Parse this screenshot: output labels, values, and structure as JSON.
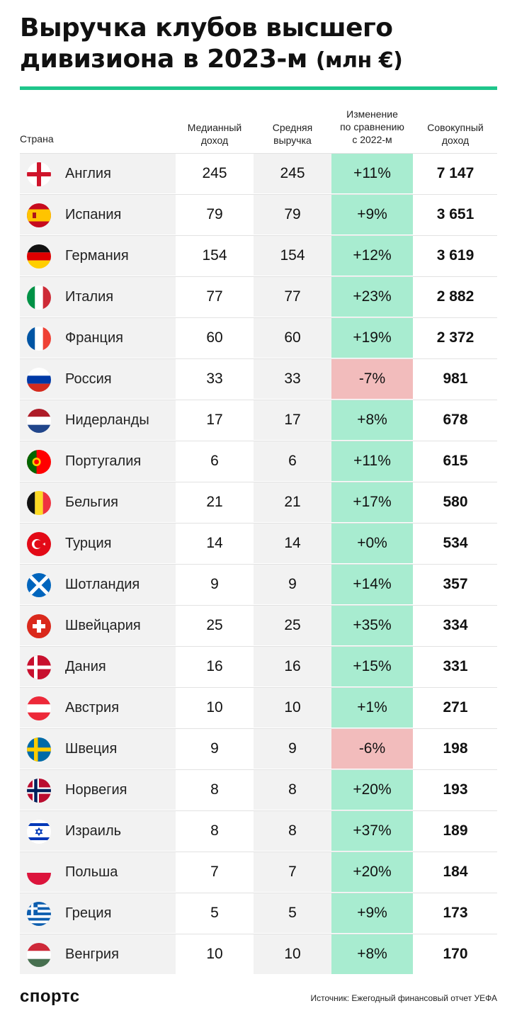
{
  "title_line1": "Выручка клубов высшего",
  "title_line2": "дивизиона в 2023-м",
  "title_unit": "(млн €)",
  "colors": {
    "accent": "#1fc68b",
    "positive": "#a8ecd0",
    "negative": "#f2bcbc"
  },
  "chart_data": {
    "type": "table",
    "columns": [
      "Страна",
      "Медианный доход",
      "Средняя выручка",
      "Изменение по сравнению с 2022-м",
      "Совокупный доход"
    ],
    "rows": [
      {
        "flag": "england-flag-icon",
        "country": "Англия",
        "median": "245",
        "average": "245",
        "change": "+11%",
        "total": "7 147"
      },
      {
        "flag": "spain-flag-icon",
        "country": "Испания",
        "median": "79",
        "average": "79",
        "change": "+9%",
        "total": "3 651"
      },
      {
        "flag": "germany-flag-icon",
        "country": "Германия",
        "median": "154",
        "average": "154",
        "change": "+12%",
        "total": "3 619"
      },
      {
        "flag": "italy-flag-icon",
        "country": "Италия",
        "median": "77",
        "average": "77",
        "change": "+23%",
        "total": "2 882"
      },
      {
        "flag": "france-flag-icon",
        "country": "Франция",
        "median": "60",
        "average": "60",
        "change": "+19%",
        "total": "2 372"
      },
      {
        "flag": "russia-flag-icon",
        "country": "Россия",
        "median": "33",
        "average": "33",
        "change": "-7%",
        "total": "981"
      },
      {
        "flag": "netherlands-flag-icon",
        "country": "Нидерланды",
        "median": "17",
        "average": "17",
        "change": "+8%",
        "total": "678"
      },
      {
        "flag": "portugal-flag-icon",
        "country": "Португалия",
        "median": "6",
        "average": "6",
        "change": "+11%",
        "total": "615"
      },
      {
        "flag": "belgium-flag-icon",
        "country": "Бельгия",
        "median": "21",
        "average": "21",
        "change": "+17%",
        "total": "580"
      },
      {
        "flag": "turkey-flag-icon",
        "country": "Турция",
        "median": "14",
        "average": "14",
        "change": "+0%",
        "total": "534"
      },
      {
        "flag": "scotland-flag-icon",
        "country": "Шотландия",
        "median": "9",
        "average": "9",
        "change": "+14%",
        "total": "357"
      },
      {
        "flag": "switzerland-flag-icon",
        "country": "Швейцария",
        "median": "25",
        "average": "25",
        "change": "+35%",
        "total": "334"
      },
      {
        "flag": "denmark-flag-icon",
        "country": "Дания",
        "median": "16",
        "average": "16",
        "change": "+15%",
        "total": "331"
      },
      {
        "flag": "austria-flag-icon",
        "country": "Австрия",
        "median": "10",
        "average": "10",
        "change": "+1%",
        "total": "271"
      },
      {
        "flag": "sweden-flag-icon",
        "country": "Швеция",
        "median": "9",
        "average": "9",
        "change": "-6%",
        "total": "198"
      },
      {
        "flag": "norway-flag-icon",
        "country": "Норвегия",
        "median": "8",
        "average": "8",
        "change": "+20%",
        "total": "193"
      },
      {
        "flag": "israel-flag-icon",
        "country": "Израиль",
        "median": "8",
        "average": "8",
        "change": "+37%",
        "total": "189"
      },
      {
        "flag": "poland-flag-icon",
        "country": "Польша",
        "median": "7",
        "average": "7",
        "change": "+20%",
        "total": "184"
      },
      {
        "flag": "greece-flag-icon",
        "country": "Греция",
        "median": "5",
        "average": "5",
        "change": "+9%",
        "total": "173"
      },
      {
        "flag": "hungary-flag-icon",
        "country": "Венгрия",
        "median": "10",
        "average": "10",
        "change": "+8%",
        "total": "170"
      }
    ]
  },
  "headers": {
    "country": "Страна",
    "median_l1": "Медианный",
    "median_l2": "доход",
    "avg_l1": "Средняя",
    "avg_l2": "выручка",
    "chg_l1": "Изменение",
    "chg_l2": "по сравнению",
    "chg_l3": "с 2022-м",
    "tot_l1": "Совокупный",
    "tot_l2": "доход"
  },
  "footer": {
    "logo": "спортс",
    "source": "Источник: Ежегодный финансовый отчет УЕФА"
  }
}
